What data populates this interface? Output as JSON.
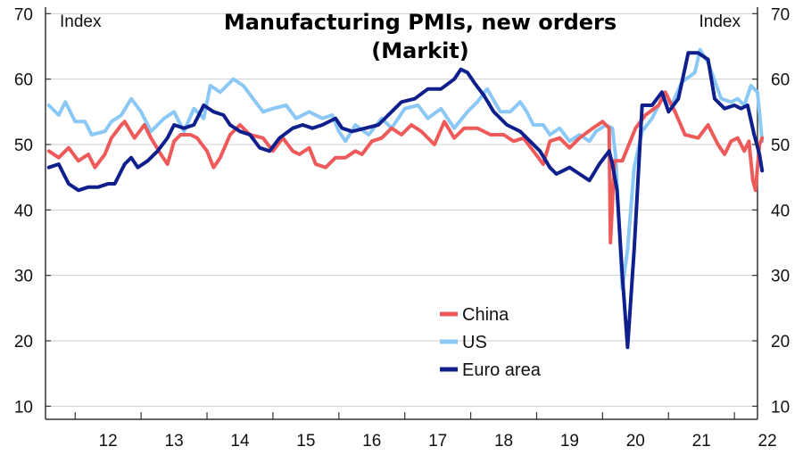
{
  "chart_data": {
    "type": "line",
    "title": "Manufacturing PMIs, new orders",
    "subtitle": "(Markit)",
    "ylabel_left": "Index",
    "ylabel_right": "Index",
    "ylim": [
      8,
      71
    ],
    "yticks": [
      10,
      20,
      30,
      40,
      50,
      60,
      70
    ],
    "xlim": [
      2011.55,
      2022.35
    ],
    "x_tick_labels": [
      "12",
      "13",
      "14",
      "15",
      "16",
      "17",
      "18",
      "19",
      "20",
      "21",
      "22"
    ],
    "grid": true,
    "legend_position": "center-bottom",
    "series": [
      {
        "name": "China",
        "color": "#ee5a5a",
        "points": [
          [
            2011.6,
            49.0
          ],
          [
            2011.75,
            48.0
          ],
          [
            2011.9,
            49.5
          ],
          [
            2012.05,
            47.5
          ],
          [
            2012.2,
            48.5
          ],
          [
            2012.3,
            46.5
          ],
          [
            2012.45,
            48.5
          ],
          [
            2012.55,
            51.0
          ],
          [
            2012.7,
            53.0
          ],
          [
            2012.75,
            53.5
          ],
          [
            2012.9,
            51.0
          ],
          [
            2013.05,
            53.0
          ],
          [
            2013.15,
            51.0
          ],
          [
            2013.3,
            48.5
          ],
          [
            2013.4,
            47.0
          ],
          [
            2013.5,
            50.5
          ],
          [
            2013.6,
            51.5
          ],
          [
            2013.75,
            51.5
          ],
          [
            2013.85,
            51.0
          ],
          [
            2014.0,
            49.0
          ],
          [
            2014.1,
            46.5
          ],
          [
            2014.2,
            48.0
          ],
          [
            2014.35,
            51.5
          ],
          [
            2014.5,
            53.0
          ],
          [
            2014.65,
            51.5
          ],
          [
            2014.85,
            51.0
          ],
          [
            2015.0,
            49.0
          ],
          [
            2015.15,
            51.0
          ],
          [
            2015.3,
            49.0
          ],
          [
            2015.4,
            48.5
          ],
          [
            2015.55,
            49.5
          ],
          [
            2015.65,
            47.0
          ],
          [
            2015.8,
            46.5
          ],
          [
            2015.95,
            48.0
          ],
          [
            2016.1,
            48.0
          ],
          [
            2016.25,
            49.0
          ],
          [
            2016.35,
            48.5
          ],
          [
            2016.5,
            50.5
          ],
          [
            2016.65,
            51.0
          ],
          [
            2016.8,
            52.5
          ],
          [
            2016.95,
            51.5
          ],
          [
            2017.1,
            53.0
          ],
          [
            2017.25,
            52.0
          ],
          [
            2017.45,
            50.0
          ],
          [
            2017.6,
            53.5
          ],
          [
            2017.75,
            51.0
          ],
          [
            2017.9,
            52.5
          ],
          [
            2018.1,
            52.5
          ],
          [
            2018.3,
            51.5
          ],
          [
            2018.5,
            51.5
          ],
          [
            2018.65,
            50.5
          ],
          [
            2018.8,
            51.0
          ],
          [
            2018.95,
            49.0
          ],
          [
            2019.1,
            47.0
          ],
          [
            2019.2,
            50.5
          ],
          [
            2019.35,
            51.0
          ],
          [
            2019.5,
            49.5
          ],
          [
            2019.65,
            51.0
          ],
          [
            2019.85,
            52.5
          ],
          [
            2020.0,
            53.5
          ],
          [
            2020.1,
            52.5
          ],
          [
            2020.12,
            35.0
          ],
          [
            2020.18,
            47.5
          ],
          [
            2020.3,
            47.5
          ],
          [
            2020.5,
            52.5
          ],
          [
            2020.65,
            54.5
          ],
          [
            2020.85,
            56.0
          ],
          [
            2020.95,
            58.0
          ],
          [
            2021.1,
            55.0
          ],
          [
            2021.25,
            51.5
          ],
          [
            2021.45,
            51.0
          ],
          [
            2021.6,
            53.0
          ],
          [
            2021.75,
            50.0
          ],
          [
            2021.85,
            48.5
          ],
          [
            2021.95,
            50.5
          ],
          [
            2022.05,
            51.0
          ],
          [
            2022.15,
            49.0
          ],
          [
            2022.22,
            50.5
          ],
          [
            2022.28,
            44.5
          ],
          [
            2022.32,
            43.0
          ],
          [
            2022.38,
            50.0
          ],
          [
            2022.42,
            51.0
          ]
        ]
      },
      {
        "name": "US",
        "color": "#8cc8f5",
        "points": [
          [
            2011.6,
            56.0
          ],
          [
            2011.75,
            54.5
          ],
          [
            2011.85,
            56.5
          ],
          [
            2012.0,
            53.5
          ],
          [
            2012.15,
            53.5
          ],
          [
            2012.25,
            51.5
          ],
          [
            2012.45,
            52.0
          ],
          [
            2012.55,
            53.5
          ],
          [
            2012.7,
            54.5
          ],
          [
            2012.85,
            57.0
          ],
          [
            2013.0,
            55.0
          ],
          [
            2013.15,
            52.0
          ],
          [
            2013.35,
            54.0
          ],
          [
            2013.5,
            55.0
          ],
          [
            2013.65,
            52.0
          ],
          [
            2013.8,
            55.5
          ],
          [
            2013.95,
            54.0
          ],
          [
            2014.05,
            59.0
          ],
          [
            2014.2,
            58.0
          ],
          [
            2014.4,
            60.0
          ],
          [
            2014.55,
            59.0
          ],
          [
            2014.7,
            57.0
          ],
          [
            2014.85,
            55.0
          ],
          [
            2015.0,
            55.5
          ],
          [
            2015.2,
            56.0
          ],
          [
            2015.35,
            54.0
          ],
          [
            2015.55,
            55.0
          ],
          [
            2015.75,
            54.0
          ],
          [
            2015.9,
            54.5
          ],
          [
            2016.0,
            52.0
          ],
          [
            2016.1,
            50.5
          ],
          [
            2016.25,
            53.0
          ],
          [
            2016.45,
            51.5
          ],
          [
            2016.65,
            54.0
          ],
          [
            2016.8,
            52.5
          ],
          [
            2017.0,
            55.5
          ],
          [
            2017.2,
            56.0
          ],
          [
            2017.35,
            54.0
          ],
          [
            2017.55,
            55.5
          ],
          [
            2017.75,
            52.5
          ],
          [
            2017.95,
            55.0
          ],
          [
            2018.1,
            56.5
          ],
          [
            2018.25,
            58.5
          ],
          [
            2018.45,
            55.0
          ],
          [
            2018.6,
            55.0
          ],
          [
            2018.75,
            56.5
          ],
          [
            2018.85,
            55.0
          ],
          [
            2018.95,
            53.0
          ],
          [
            2019.1,
            53.0
          ],
          [
            2019.2,
            51.5
          ],
          [
            2019.35,
            52.5
          ],
          [
            2019.5,
            50.5
          ],
          [
            2019.65,
            51.5
          ],
          [
            2019.8,
            50.5
          ],
          [
            2019.9,
            52.0
          ],
          [
            2020.05,
            53.0
          ],
          [
            2020.15,
            52.5
          ],
          [
            2020.2,
            48.0
          ],
          [
            2020.3,
            28.0
          ],
          [
            2020.38,
            34.0
          ],
          [
            2020.48,
            46.5
          ],
          [
            2020.6,
            52.0
          ],
          [
            2020.75,
            54.0
          ],
          [
            2020.9,
            57.0
          ],
          [
            2021.05,
            56.0
          ],
          [
            2021.2,
            59.5
          ],
          [
            2021.4,
            61.0
          ],
          [
            2021.48,
            64.5
          ],
          [
            2021.6,
            62.5
          ],
          [
            2021.8,
            57.0
          ],
          [
            2021.95,
            56.5
          ],
          [
            2022.05,
            57.0
          ],
          [
            2022.15,
            56.0
          ],
          [
            2022.25,
            59.0
          ],
          [
            2022.35,
            58.0
          ],
          [
            2022.42,
            50.5
          ]
        ]
      },
      {
        "name": "Euro area",
        "color": "#0f1f8c",
        "points": [
          [
            2011.6,
            46.5
          ],
          [
            2011.75,
            47.0
          ],
          [
            2011.9,
            44.0
          ],
          [
            2012.05,
            43.0
          ],
          [
            2012.2,
            43.5
          ],
          [
            2012.35,
            43.5
          ],
          [
            2012.5,
            44.0
          ],
          [
            2012.6,
            44.0
          ],
          [
            2012.75,
            47.0
          ],
          [
            2012.85,
            48.0
          ],
          [
            2012.95,
            46.5
          ],
          [
            2013.1,
            47.5
          ],
          [
            2013.25,
            49.0
          ],
          [
            2013.4,
            51.0
          ],
          [
            2013.5,
            53.0
          ],
          [
            2013.65,
            52.5
          ],
          [
            2013.8,
            53.0
          ],
          [
            2013.95,
            56.0
          ],
          [
            2014.1,
            55.0
          ],
          [
            2014.25,
            54.5
          ],
          [
            2014.35,
            53.0
          ],
          [
            2014.5,
            52.0
          ],
          [
            2014.65,
            51.5
          ],
          [
            2014.8,
            49.5
          ],
          [
            2014.95,
            49.0
          ],
          [
            2015.1,
            51.0
          ],
          [
            2015.3,
            52.5
          ],
          [
            2015.45,
            53.0
          ],
          [
            2015.6,
            52.5
          ],
          [
            2015.75,
            53.0
          ],
          [
            2015.95,
            54.0
          ],
          [
            2016.05,
            52.5
          ],
          [
            2016.2,
            52.0
          ],
          [
            2016.4,
            52.5
          ],
          [
            2016.6,
            53.0
          ],
          [
            2016.8,
            55.0
          ],
          [
            2016.95,
            56.5
          ],
          [
            2017.15,
            57.0
          ],
          [
            2017.35,
            58.5
          ],
          [
            2017.55,
            58.5
          ],
          [
            2017.75,
            60.0
          ],
          [
            2017.85,
            61.5
          ],
          [
            2017.95,
            61.0
          ],
          [
            2018.05,
            59.5
          ],
          [
            2018.2,
            57.5
          ],
          [
            2018.35,
            55.0
          ],
          [
            2018.55,
            53.0
          ],
          [
            2018.75,
            52.0
          ],
          [
            2018.9,
            50.5
          ],
          [
            2019.05,
            49.0
          ],
          [
            2019.2,
            46.5
          ],
          [
            2019.3,
            45.5
          ],
          [
            2019.5,
            46.5
          ],
          [
            2019.65,
            45.5
          ],
          [
            2019.8,
            44.5
          ],
          [
            2019.95,
            47.0
          ],
          [
            2020.1,
            49.0
          ],
          [
            2020.15,
            47.0
          ],
          [
            2020.22,
            43.0
          ],
          [
            2020.3,
            30.0
          ],
          [
            2020.38,
            19.0
          ],
          [
            2020.48,
            34.0
          ],
          [
            2020.6,
            56.0
          ],
          [
            2020.75,
            56.0
          ],
          [
            2020.9,
            58.0
          ],
          [
            2021.0,
            55.0
          ],
          [
            2021.15,
            57.0
          ],
          [
            2021.3,
            64.0
          ],
          [
            2021.45,
            64.0
          ],
          [
            2021.6,
            63.0
          ],
          [
            2021.7,
            57.0
          ],
          [
            2021.85,
            55.5
          ],
          [
            2022.0,
            56.0
          ],
          [
            2022.1,
            55.5
          ],
          [
            2022.2,
            56.0
          ],
          [
            2022.3,
            51.5
          ],
          [
            2022.38,
            48.5
          ],
          [
            2022.42,
            46.0
          ]
        ]
      }
    ]
  }
}
